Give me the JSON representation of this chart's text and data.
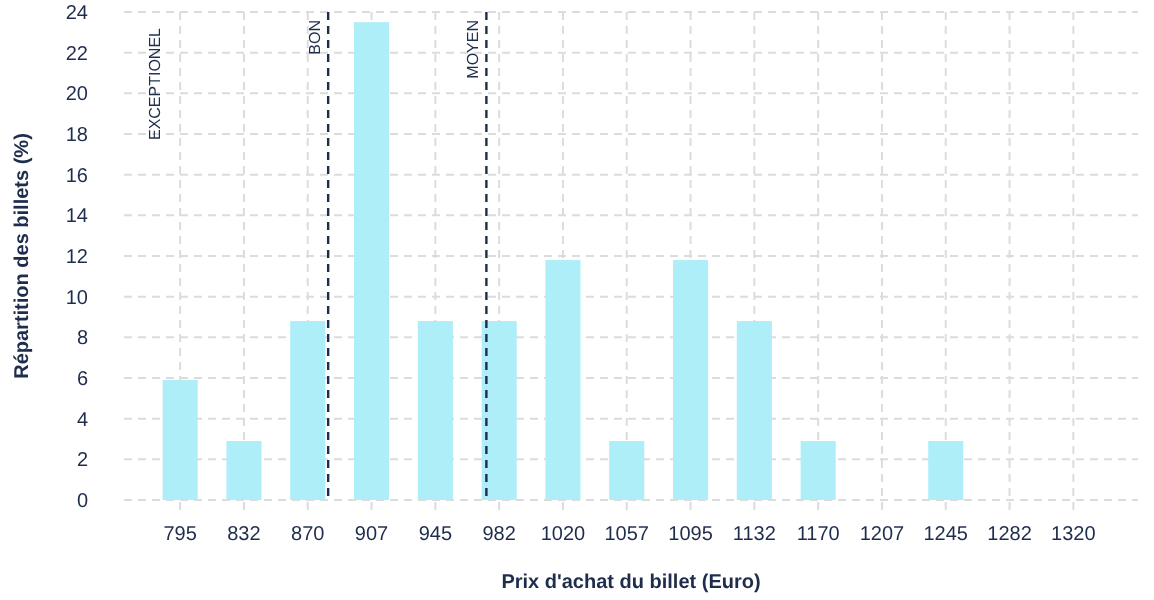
{
  "chart_data": {
    "type": "bar",
    "xlabel": "Prix d'achat du billet (Euro)",
    "ylabel": "Répartition des billets (%)",
    "x": [
      795,
      832.5,
      870,
      907.5,
      945,
      982.5,
      1020,
      1057.5,
      1095,
      1132.5,
      1170,
      1207.5,
      1245,
      1282.5,
      1320
    ],
    "values": [
      5.9,
      2.9,
      8.8,
      23.5,
      8.8,
      8.8,
      11.8,
      2.9,
      11.8,
      8.8,
      2.9,
      0,
      2.9,
      0,
      0
    ],
    "color": "#aeeef8",
    "xlim": [
      762,
      1358
    ],
    "xticks": [
      795,
      {
        "value": 832.5,
        "label": "832"
      },
      870,
      {
        "value": 907.5,
        "label": "907"
      },
      945,
      {
        "value": 982.5,
        "label": "982"
      },
      1020,
      {
        "value": 1057.5,
        "label": "1057"
      },
      1095,
      {
        "value": 1132.5,
        "label": "1132"
      },
      1170,
      {
        "value": 1207.5,
        "label": "1207"
      },
      1245,
      {
        "value": 1282.5,
        "label": "1282"
      },
      1320
    ],
    "ylim": [
      0,
      24
    ],
    "yticks": [
      0,
      2,
      4,
      6,
      8,
      10,
      12,
      14,
      16,
      18,
      20,
      22,
      24
    ],
    "grid": true,
    "ref_lines": [
      {
        "axis": "x",
        "value": 882,
        "label": "BON",
        "color": "#1f2d4d",
        "line_style": "dashed"
      },
      {
        "axis": "x",
        "value": 975,
        "label": "MOYEN",
        "color": "#1f2d4d",
        "line_style": "dashed"
      }
    ],
    "annotations": [
      "EXCEPTIONEL"
    ]
  }
}
